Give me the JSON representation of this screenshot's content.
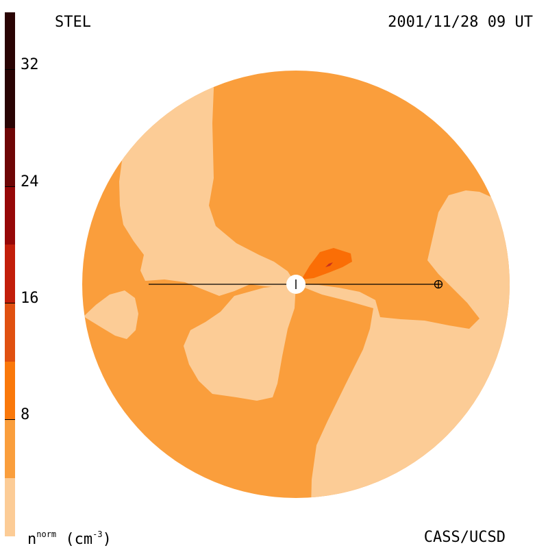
{
  "header": {
    "instrument": "STEL",
    "timestamp": "2001/11/28 09 UT"
  },
  "footer": {
    "credit": "CASS/UCSD",
    "quantity_base": "n",
    "quantity_sup": "norm",
    "quantity_unit": "(cm",
    "unit_sup": "-3",
    "unit_close": ")"
  },
  "colorbar": {
    "ticks": [
      "8",
      "16",
      "24",
      "32"
    ],
    "colors": [
      "#fccc96",
      "#fa9e3c",
      "#fa780a",
      "#e05010",
      "#c21e0a",
      "#960808",
      "#6e0606",
      "#2a0404"
    ]
  },
  "map": {
    "colors": {
      "low": "#fccc96",
      "mid": "#fa9e3c",
      "high": "#fa6e06",
      "peak": "#c8321e"
    }
  }
}
